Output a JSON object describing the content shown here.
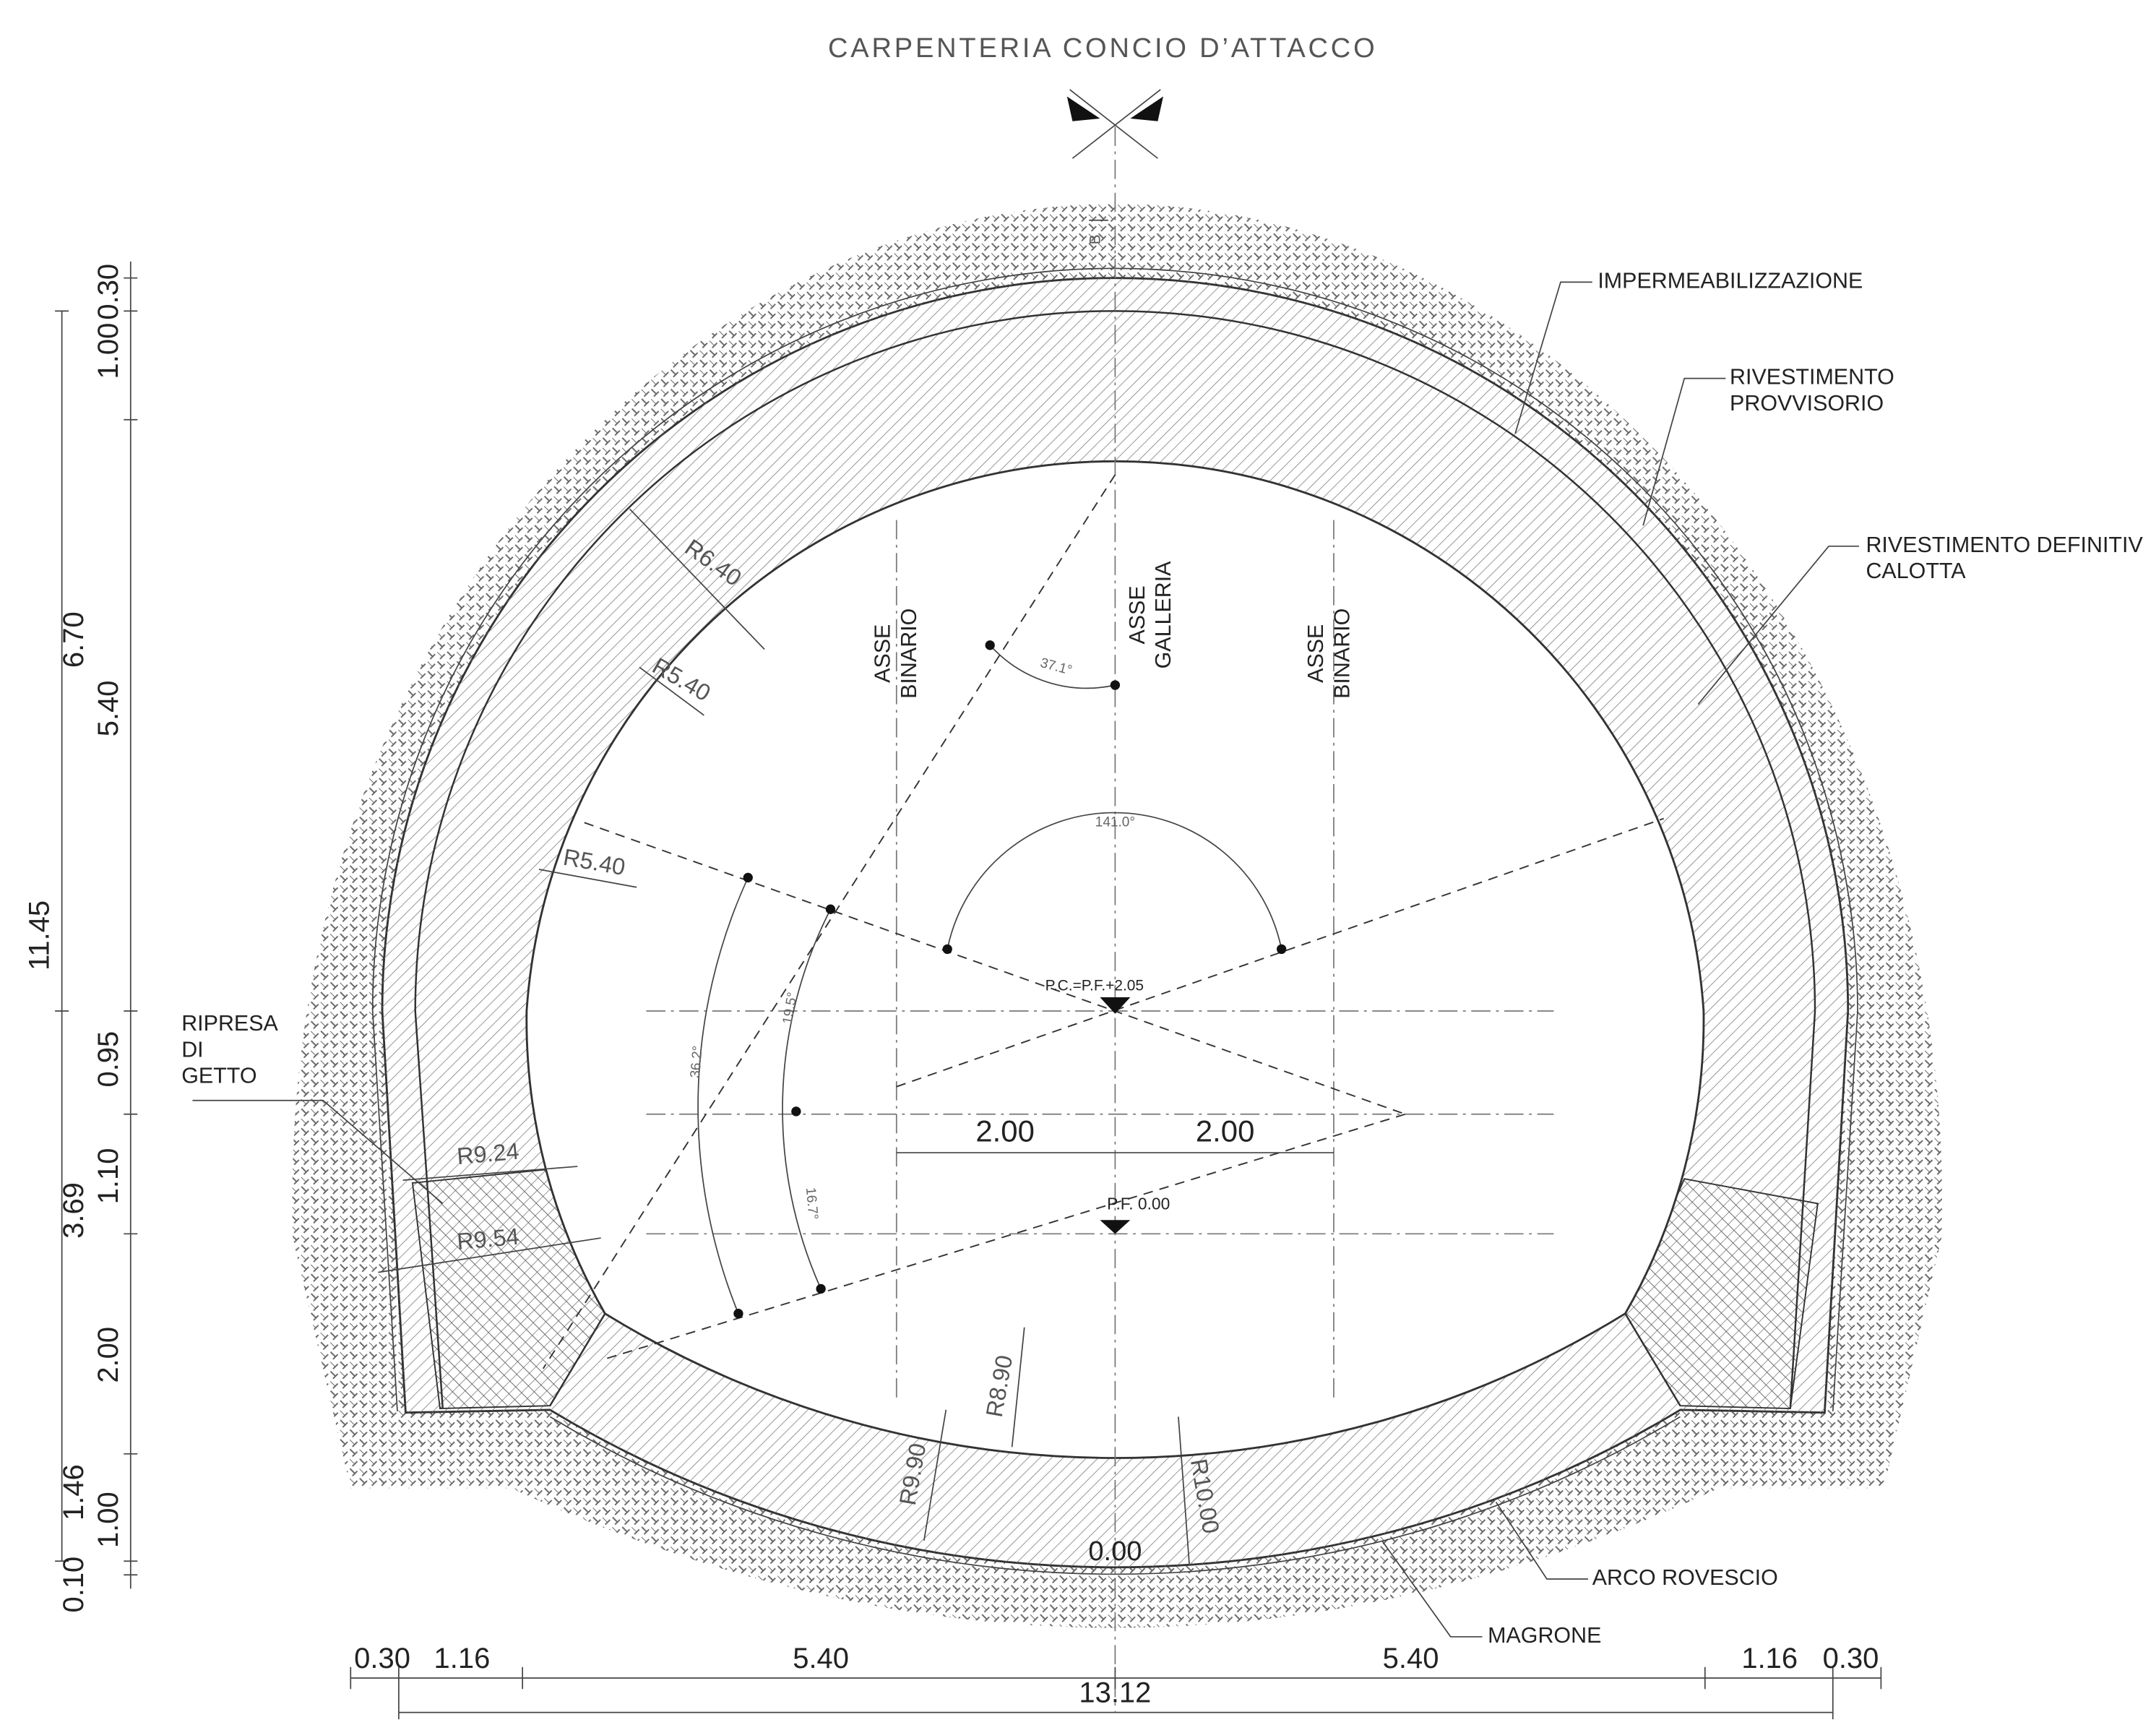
{
  "title": "CARPENTERIA CONCIO D’ATTACCO",
  "section_mark": "B",
  "callouts": [
    {
      "lines": [
        "IMPERMEABILIZZAZIONE"
      ]
    },
    {
      "lines": [
        "RIVESTIMENTO",
        "PROVVISORIO"
      ]
    },
    {
      "lines": [
        "RIVESTIMENTO DEFINITIV",
        "CALOTTA"
      ]
    },
    {
      "lines": [
        "RIPRESA",
        "DI",
        "GETTO"
      ]
    },
    {
      "lines": [
        "ARCO ROVESCIO"
      ]
    },
    {
      "lines": [
        "MAGRONE"
      ]
    }
  ],
  "axes": [
    {
      "lines": [
        "ASSE",
        "BINARIO"
      ]
    },
    {
      "lines": [
        "ASSE",
        "GALLERIA"
      ]
    },
    {
      "lines": [
        "ASSE",
        "BINARIO"
      ]
    }
  ],
  "radii": [
    "R6.40",
    "R5.40",
    "R5.40",
    "R9.24",
    "R9.54",
    "R8.90",
    "R9.90",
    "R10.00"
  ],
  "angles": [
    "37.1°",
    "141.0°",
    "19.5°",
    "36.2°",
    "16.7°"
  ],
  "levels": [
    "P.C.=P.F.+2.05",
    "P.F. 0.00",
    "0.00"
  ],
  "offsets": [
    "2.00",
    "2.00"
  ],
  "vertical_dimensions": [
    "0.30",
    "1.00",
    "6.70",
    "5.40",
    "11.45",
    "0.95",
    "1.10",
    "3.69",
    "2.00",
    "1.46",
    "1.00",
    "0.10"
  ],
  "horizontal_dimensions": [
    "0.30",
    "1.16",
    "5.40",
    "5.40",
    "1.16",
    "0.30",
    "13.12"
  ]
}
